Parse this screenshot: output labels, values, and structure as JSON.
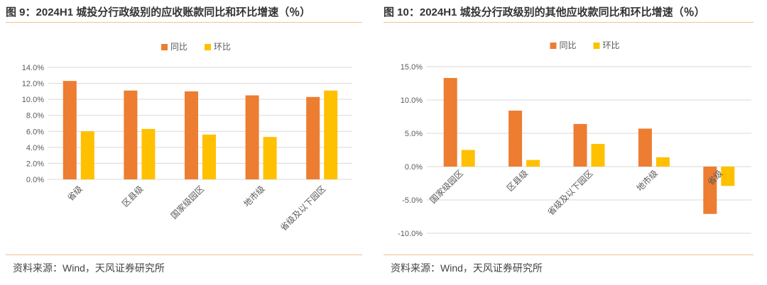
{
  "colors": {
    "yoy": "#ed7d31",
    "mom": "#ffc000",
    "rule": "#f3c08f",
    "grid": "#d9d9d9",
    "axis_text": "#595959"
  },
  "figures": [
    {
      "title": "图 9：2024H1 城投分行政级别的应收账款同比和环比增速（％）",
      "source": "资料来源：Wind，天风证券研究所"
    },
    {
      "title": "图 10：2024H1 城投分行政级别的其他应收款同比和环比增速（％）",
      "source": "资料来源：Wind，天风证券研究所"
    }
  ],
  "chart_data": [
    {
      "type": "bar",
      "title": "",
      "categories": [
        "省级",
        "区县级",
        "国家级园区",
        "地市级",
        "省级及以下园区"
      ],
      "series": [
        {
          "name": "同比",
          "values": [
            12.3,
            11.1,
            11.0,
            10.5,
            10.3
          ]
        },
        {
          "name": "环比",
          "values": [
            6.0,
            6.3,
            5.6,
            5.3,
            11.1
          ]
        }
      ],
      "ylim": [
        0,
        14
      ],
      "yticks": [
        0,
        2,
        4,
        6,
        8,
        10,
        12,
        14
      ],
      "ytick_labels": [
        "0.0%",
        "2.0%",
        "4.0%",
        "6.0%",
        "8.0%",
        "10.0%",
        "12.0%",
        "14.0%"
      ],
      "legend": "top-center",
      "grid": true
    },
    {
      "type": "bar",
      "title": "",
      "categories": [
        "国家级园区",
        "区县级",
        "省级及以下园区",
        "地市级",
        "省级"
      ],
      "series": [
        {
          "name": "同比",
          "values": [
            13.3,
            8.4,
            6.4,
            5.7,
            -7.1
          ]
        },
        {
          "name": "环比",
          "values": [
            2.5,
            1.0,
            3.4,
            1.4,
            -2.9
          ]
        }
      ],
      "ylim": [
        -10,
        15
      ],
      "yticks": [
        -10,
        -5,
        0,
        5,
        10,
        15
      ],
      "ytick_labels": [
        "-10.0%",
        "-5.0%",
        "0.0%",
        "5.0%",
        "10.0%",
        "15.0%"
      ],
      "legend": "top-center",
      "grid": true
    }
  ]
}
